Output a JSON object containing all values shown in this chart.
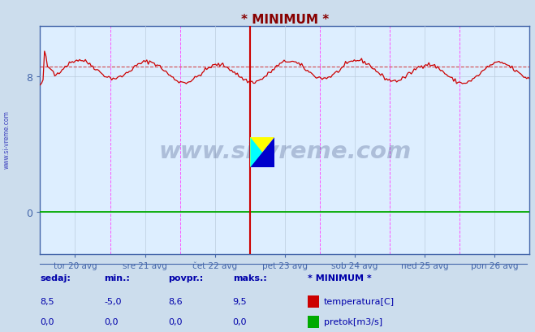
{
  "title": "* MINIMUM *",
  "title_color": "#880000",
  "bg_color": "#ccdded",
  "plot_bg_color": "#ddeeff",
  "grid_color": "#bbccdd",
  "axis_color": "#4466aa",
  "text_color": "#0000aa",
  "temp_color": "#cc0000",
  "flow_color": "#00aa00",
  "avg_line_color": "#cc0000",
  "vert_line_color": "#ff44ff",
  "special_vert_color": "#cc0000",
  "ylim": [
    -2.5,
    11.0
  ],
  "y_ticks": [
    0,
    8
  ],
  "avg_value": 8.6,
  "day_labels": [
    "tor 20 avg",
    "sre 21 avg",
    "čet 22 avg",
    "pet 23 avg",
    "sob 24 avg",
    "ned 25 avg",
    "pon 26 avg"
  ],
  "watermark": "www.si-vreme.com",
  "watermark_color": "#334477",
  "sidebar_text": "www.si-vreme.com",
  "bottom_labels": [
    "sedaj:",
    "min.:",
    "povpr.:",
    "maks.:"
  ],
  "bottom_values_temp": [
    "8,5",
    "-5,0",
    "8,6",
    "9,5"
  ],
  "bottom_values_flow": [
    "0,0",
    "0,0",
    "0,0",
    "0,0"
  ],
  "legend_title": "* MINIMUM *",
  "legend_items": [
    "temperatura[C]",
    "pretok[m3/s]"
  ]
}
